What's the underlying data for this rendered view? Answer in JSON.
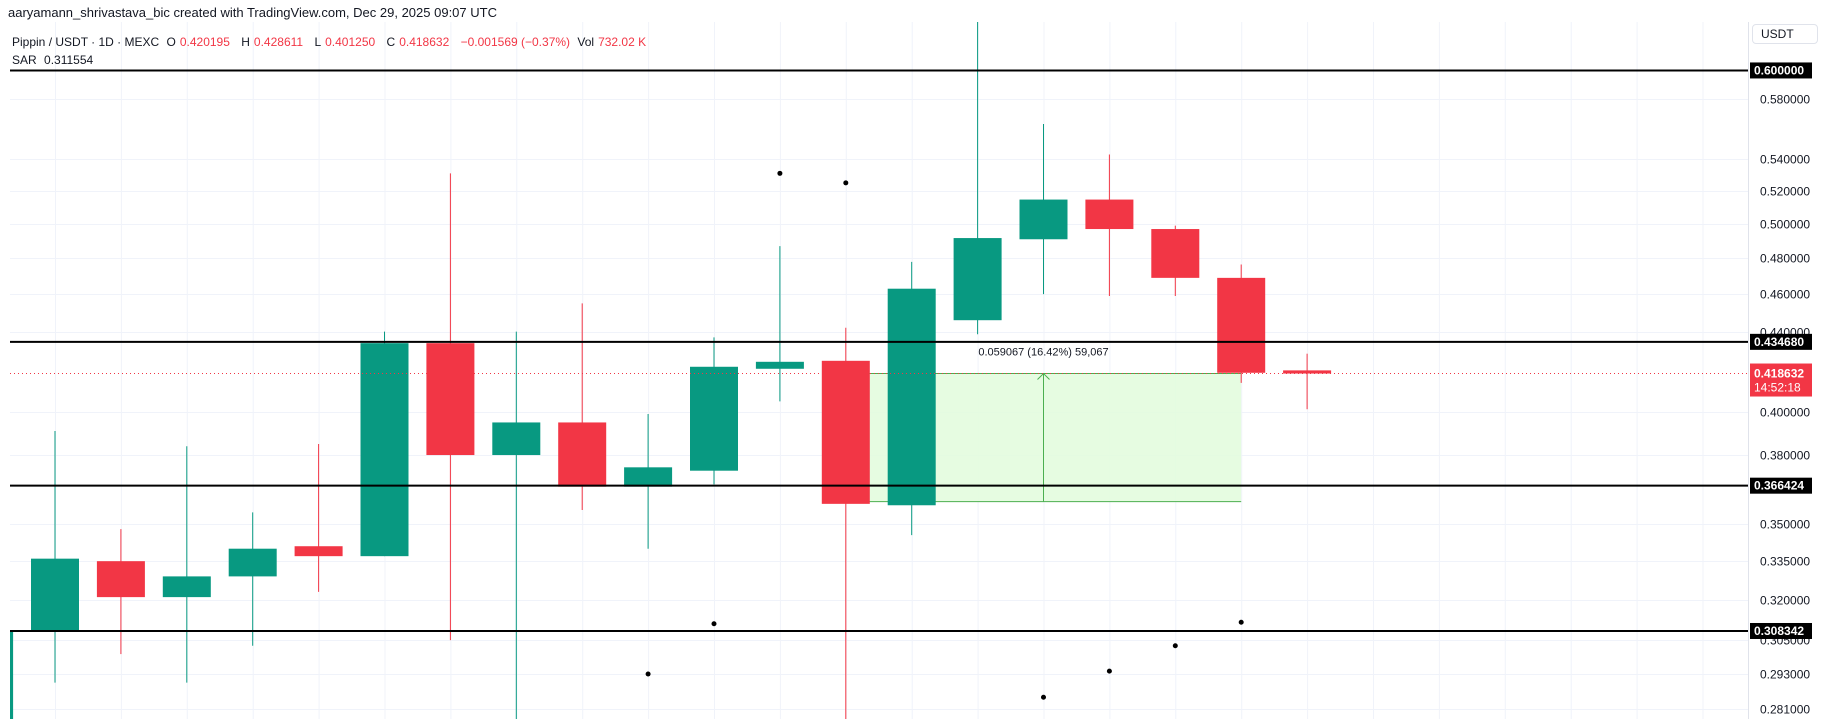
{
  "credit": "aaryamann_shrivastava_bic created with TradingView.com, Dec 29, 2025 09:07 UTC",
  "legend": {
    "symbol": "Pippin / USDT · 1D · MEXC",
    "o_label": "O",
    "o": "0.420195",
    "h_label": "H",
    "h": "0.428611",
    "l_label": "L",
    "l": "0.401250",
    "c_label": "C",
    "c": "0.418632",
    "change": "−0.001569 (−0.37%)",
    "vol_label": "Vol",
    "vol": "732.02 K",
    "sar_label": "SAR",
    "sar": "0.311554"
  },
  "axis": {
    "currency": "USDT"
  },
  "colors": {
    "up": "#089981",
    "down": "#f23645",
    "measure_fill": "#e2fbdc",
    "measure_line": "#4caf50",
    "level": "#000000"
  },
  "chart_data": {
    "type": "candlestick",
    "symbol": "Pippin / USDT",
    "interval": "1D",
    "y_scale": "log",
    "ylim": [
      0.276,
      0.64
    ],
    "y_ticks": [
      "0.580000",
      "0.540000",
      "0.520000",
      "0.500000",
      "0.480000",
      "0.460000",
      "0.440000",
      "0.400000",
      "0.380000",
      "0.350000",
      "0.335000",
      "0.320000",
      "0.305000",
      "0.293000",
      "0.281000"
    ],
    "candles": [
      {
        "o": 0.27,
        "h": 0.308,
        "l": 0.27,
        "c": 0.308
      },
      {
        "o": 0.308,
        "h": 0.391,
        "l": 0.29,
        "c": 0.336
      },
      {
        "o": 0.335,
        "h": 0.348,
        "l": 0.3,
        "c": 0.321
      },
      {
        "o": 0.321,
        "h": 0.384,
        "l": 0.29,
        "c": 0.329
      },
      {
        "o": 0.329,
        "h": 0.355,
        "l": 0.303,
        "c": 0.34
      },
      {
        "o": 0.341,
        "h": 0.385,
        "l": 0.323,
        "c": 0.337
      },
      {
        "o": 0.337,
        "h": 0.44,
        "l": 0.337,
        "c": 0.434
      },
      {
        "o": 0.434,
        "h": 0.531,
        "l": 0.305,
        "c": 0.38
      },
      {
        "o": 0.38,
        "h": 0.44,
        "l": 0.276,
        "c": 0.395
      },
      {
        "o": 0.395,
        "h": 0.455,
        "l": 0.356,
        "c": 0.366
      },
      {
        "o": 0.366,
        "h": 0.399,
        "l": 0.34,
        "c": 0.3745
      },
      {
        "o": 0.373,
        "h": 0.437,
        "l": 0.367,
        "c": 0.422
      },
      {
        "o": 0.421,
        "h": 0.487,
        "l": 0.405,
        "c": 0.4245
      },
      {
        "o": 0.425,
        "h": 0.442,
        "l": 0.276,
        "c": 0.3586
      },
      {
        "o": 0.358,
        "h": 0.478,
        "l": 0.3455,
        "c": 0.463
      },
      {
        "o": 0.446,
        "h": 0.64,
        "l": 0.4386,
        "c": 0.4917
      },
      {
        "o": 0.491,
        "h": 0.563,
        "l": 0.46,
        "c": 0.5147
      },
      {
        "o": 0.5147,
        "h": 0.543,
        "l": 0.459,
        "c": 0.497
      },
      {
        "o": 0.497,
        "h": 0.499,
        "l": 0.459,
        "c": 0.469
      },
      {
        "o": 0.469,
        "h": 0.4765,
        "l": 0.414,
        "c": 0.419
      },
      {
        "o": 0.420195,
        "h": 0.428611,
        "l": 0.40125,
        "c": 0.418632
      }
    ],
    "sar": [
      {
        "i": 10,
        "v": 0.293
      },
      {
        "i": 11,
        "v": 0.311
      },
      {
        "i": 12,
        "v": 0.531
      },
      {
        "i": 13,
        "v": 0.525
      },
      {
        "i": 16,
        "v": 0.285
      },
      {
        "i": 17,
        "v": 0.294
      },
      {
        "i": 18,
        "v": 0.303
      },
      {
        "i": 19,
        "v": 0.311554
      }
    ],
    "levels": [
      "0.600000",
      "0.434680",
      "0.366424",
      "0.308342"
    ],
    "last_price": {
      "value": "0.418632",
      "countdown": "14:52:18"
    },
    "measure": {
      "from_index": 13,
      "to_index": 19,
      "top": 0.418632,
      "bottom": 0.359565,
      "label": "0.059067 (16.42%) 59,067"
    }
  }
}
